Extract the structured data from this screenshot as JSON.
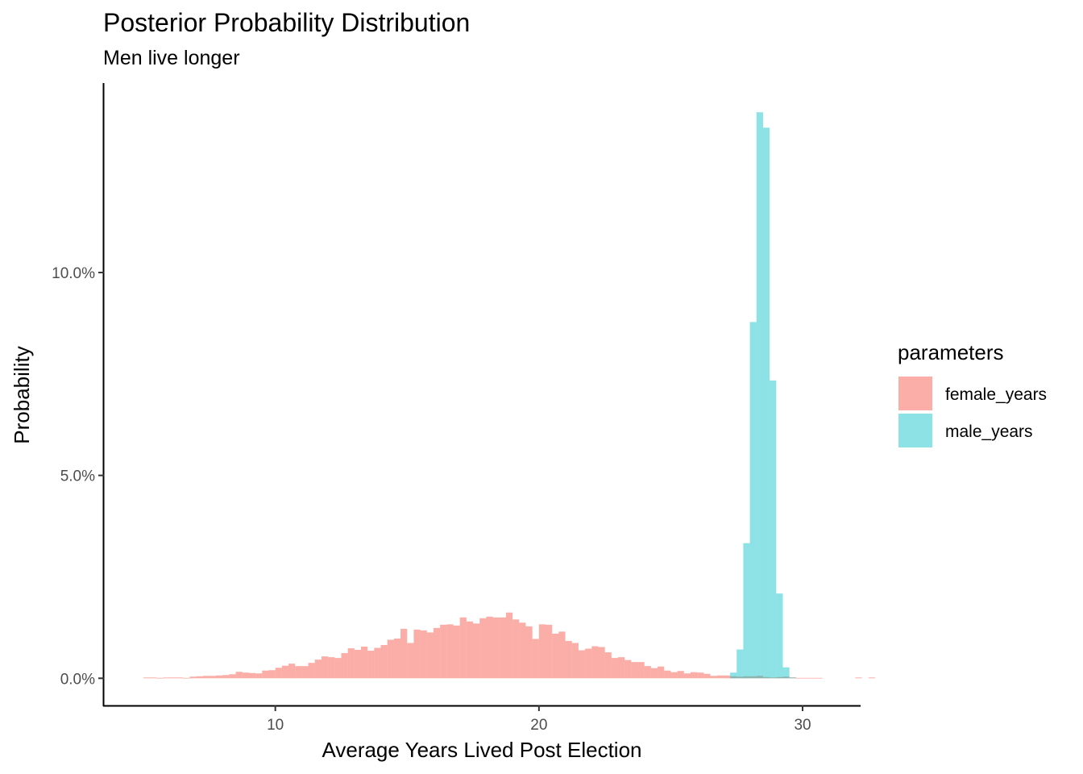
{
  "chart_data": {
    "type": "bar",
    "subtype": "histogram",
    "title": "Posterior Probability Distribution",
    "subtitle": "Men live longer",
    "xlabel": "Average Years Lived Post Election",
    "ylabel": "Probability",
    "xlim": [
      3.5,
      32.2
    ],
    "ylim": [
      -0.0067,
      0.1467
    ],
    "x_ticks": [
      10,
      20,
      30
    ],
    "x_tick_labels": [
      "10",
      "20",
      "30"
    ],
    "y_ticks": [
      0,
      0.05,
      0.1
    ],
    "y_tick_labels": [
      "0.0%",
      "5.0%",
      "10.0%"
    ],
    "grid": false,
    "bin_width": 0.25,
    "legend": {
      "title": "parameters",
      "position": "right"
    },
    "series": [
      {
        "name": "female_years",
        "color": "#F8766D",
        "opacity": 0.6,
        "bin_start": 5.0,
        "values": [
          0.0002,
          0.0002,
          0.0001,
          0.0002,
          0.0002,
          0.0002,
          0.0001,
          0.0004,
          0.0005,
          0.0006,
          0.0006,
          0.0007,
          0.0008,
          0.001,
          0.0016,
          0.0014,
          0.0013,
          0.0012,
          0.0019,
          0.002,
          0.0026,
          0.0031,
          0.0036,
          0.003,
          0.003,
          0.0038,
          0.0046,
          0.0054,
          0.0052,
          0.005,
          0.0062,
          0.0074,
          0.007,
          0.0078,
          0.0068,
          0.0075,
          0.0082,
          0.0095,
          0.0098,
          0.0122,
          0.0087,
          0.012,
          0.0118,
          0.0113,
          0.0124,
          0.0132,
          0.0133,
          0.013,
          0.015,
          0.014,
          0.0135,
          0.0148,
          0.0152,
          0.015,
          0.015,
          0.0162,
          0.0145,
          0.0137,
          0.0128,
          0.0097,
          0.0133,
          0.0132,
          0.011,
          0.0115,
          0.0092,
          0.0087,
          0.0069,
          0.0073,
          0.0079,
          0.0077,
          0.0064,
          0.005,
          0.0052,
          0.0045,
          0.004,
          0.004,
          0.003,
          0.0025,
          0.0029,
          0.0019,
          0.0015,
          0.0018,
          0.0012,
          0.0015,
          0.0014,
          0.0011,
          0.0006,
          0.0007,
          0.0007,
          0.0005,
          0.0004,
          0.0005,
          0.0005,
          0.0006,
          0.0003,
          0.0002,
          0.0003,
          0.0004,
          0.0002,
          0.0001,
          0.0001,
          0.0001,
          0.0001,
          0.0,
          0.0,
          0.0,
          0.0,
          0.0,
          0.0002,
          0.0,
          0.0002
        ]
      },
      {
        "name": "male_years",
        "color": "#00BFC4",
        "opacity": 0.45,
        "bin_start": 27.25,
        "values": [
          0.0014,
          0.0071,
          0.0333,
          0.0878,
          0.1395,
          0.1357,
          0.0734,
          0.0209,
          0.0027,
          0.0002
        ]
      }
    ]
  }
}
